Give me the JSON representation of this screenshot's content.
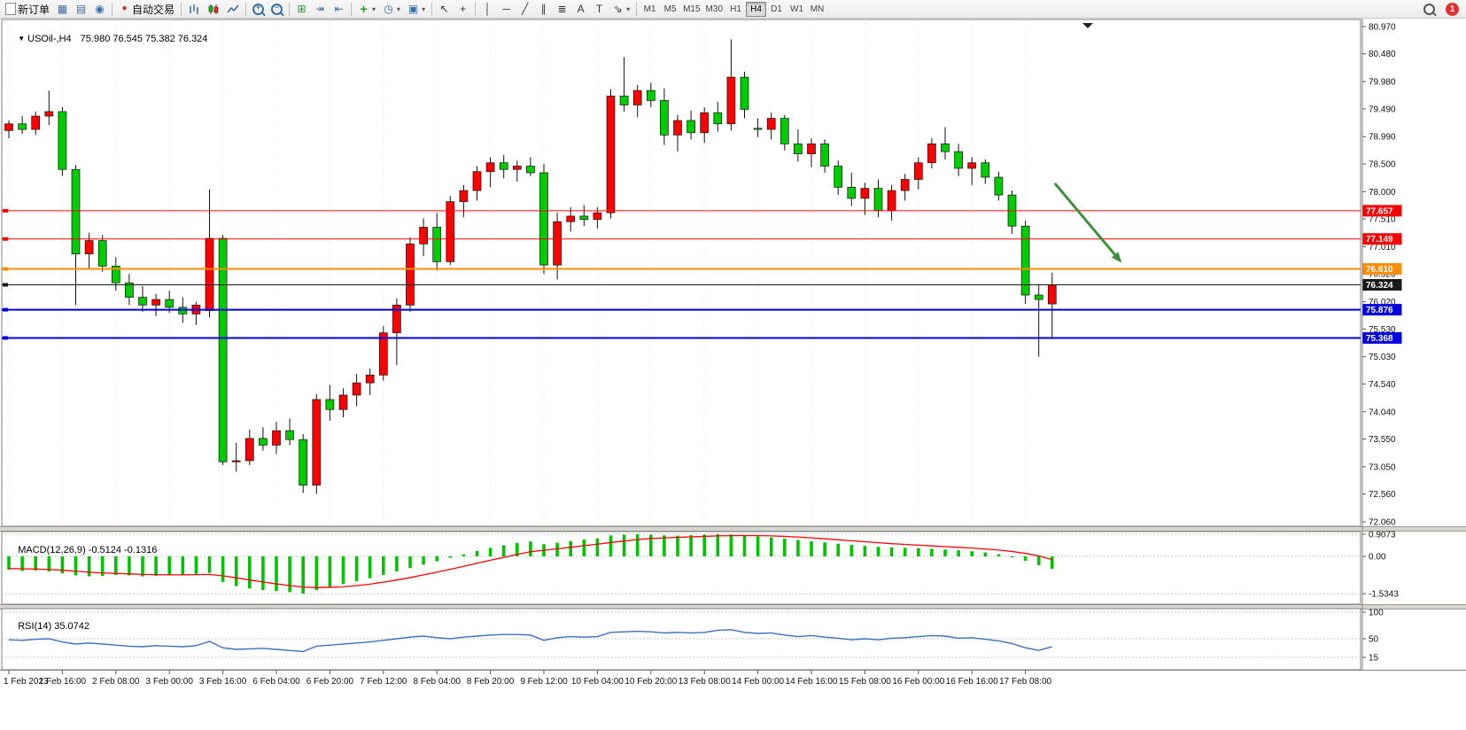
{
  "toolbar": {
    "new_order_label": "新订单",
    "autotrading_label": "自动交易",
    "notification_count": "1",
    "icons": {
      "market_watch": "▦",
      "data_window": "▤",
      "alerts": "◉",
      "zoom_in": "+",
      "zoom_out": "−",
      "tile": "⊞",
      "auto_scroll": "↠",
      "chart_shift": "⇤",
      "indicators_plus": "+",
      "periods": "◷",
      "templates": "▣",
      "caret": "▾",
      "cursor": "↖",
      "crosshair": "+",
      "vertical_line": "│",
      "horizontal_line": "─",
      "trendline": "╱",
      "channel": "∥",
      "fibonacci": "≣",
      "text_tool": "A",
      "label_tool": "T",
      "arrows_tool": "⇘",
      "autotrading_dot": "●"
    },
    "timeframes": [
      {
        "label": "M1",
        "active": false
      },
      {
        "label": "M5",
        "active": false
      },
      {
        "label": "M15",
        "active": false
      },
      {
        "label": "M30",
        "active": false
      },
      {
        "label": "H1",
        "active": false
      },
      {
        "label": "H4",
        "active": true
      },
      {
        "label": "D1",
        "active": false
      },
      {
        "label": "W1",
        "active": false
      },
      {
        "label": "MN",
        "active": false
      }
    ]
  },
  "window": {
    "marker": "▼",
    "title": "USOil-,H4",
    "ohlc": "75.980 76.545 75.382 76.324"
  },
  "indicators": {
    "macd": {
      "name": "MACD(12,26,9)",
      "values": "-0.5124 -0.1316"
    },
    "rsi": {
      "name": "RSI(14)",
      "value": "35.0742"
    }
  },
  "chart_data": {
    "type": "candlestick",
    "symbol": "USOil-",
    "timeframe": "H4",
    "up_color": "#ff0000",
    "down_color": "#00cc00",
    "candles": [
      [
        79.1,
        79.28,
        78.96,
        79.22
      ],
      [
        79.22,
        79.36,
        79.04,
        79.12
      ],
      [
        79.12,
        79.44,
        79.02,
        79.36
      ],
      [
        79.36,
        79.82,
        79.2,
        79.44
      ],
      [
        79.44,
        79.52,
        78.28,
        78.4
      ],
      [
        78.4,
        78.48,
        75.96,
        76.88
      ],
      [
        76.88,
        77.26,
        76.62,
        77.12
      ],
      [
        77.12,
        77.22,
        76.56,
        76.66
      ],
      [
        76.66,
        76.82,
        76.22,
        76.36
      ],
      [
        76.36,
        76.52,
        75.96,
        76.1
      ],
      [
        76.1,
        76.3,
        75.84,
        75.96
      ],
      [
        75.96,
        76.16,
        75.76,
        76.06
      ],
      [
        76.06,
        76.22,
        75.82,
        75.92
      ],
      [
        75.92,
        76.1,
        75.64,
        75.8
      ],
      [
        75.8,
        76.02,
        75.6,
        75.96
      ],
      [
        75.86,
        78.04,
        75.74,
        77.16
      ],
      [
        77.16,
        77.22,
        73.08,
        73.14
      ],
      [
        73.14,
        73.48,
        72.96,
        73.16
      ],
      [
        73.16,
        73.72,
        73.08,
        73.56
      ],
      [
        73.56,
        73.76,
        73.34,
        73.44
      ],
      [
        73.44,
        73.86,
        73.28,
        73.7
      ],
      [
        73.7,
        73.92,
        73.44,
        73.54
      ],
      [
        73.54,
        73.64,
        72.58,
        72.72
      ],
      [
        72.72,
        74.36,
        72.56,
        74.26
      ],
      [
        74.26,
        74.52,
        73.88,
        74.08
      ],
      [
        74.08,
        74.46,
        73.94,
        74.34
      ],
      [
        74.34,
        74.72,
        74.14,
        74.56
      ],
      [
        74.56,
        74.82,
        74.34,
        74.7
      ],
      [
        74.7,
        75.58,
        74.6,
        75.46
      ],
      [
        75.46,
        76.08,
        74.88,
        75.96
      ],
      [
        75.96,
        77.18,
        75.84,
        77.06
      ],
      [
        77.06,
        77.52,
        76.84,
        77.36
      ],
      [
        77.36,
        77.62,
        76.58,
        76.74
      ],
      [
        76.74,
        77.92,
        76.68,
        77.82
      ],
      [
        77.82,
        78.12,
        77.54,
        78.02
      ],
      [
        78.02,
        78.46,
        77.84,
        78.36
      ],
      [
        78.36,
        78.62,
        78.08,
        78.52
      ],
      [
        78.52,
        78.66,
        78.24,
        78.4
      ],
      [
        78.4,
        78.56,
        78.18,
        78.46
      ],
      [
        78.46,
        78.62,
        78.28,
        78.34
      ],
      [
        78.34,
        78.5,
        76.52,
        76.68
      ],
      [
        76.68,
        77.62,
        76.42,
        77.46
      ],
      [
        77.46,
        77.72,
        77.28,
        77.56
      ],
      [
        77.56,
        77.76,
        77.38,
        77.5
      ],
      [
        77.5,
        77.72,
        77.34,
        77.62
      ],
      [
        77.62,
        79.84,
        77.52,
        79.72
      ],
      [
        79.72,
        80.42,
        79.44,
        79.56
      ],
      [
        79.56,
        79.92,
        79.34,
        79.82
      ],
      [
        79.82,
        79.96,
        79.52,
        79.64
      ],
      [
        79.64,
        79.86,
        78.84,
        79.02
      ],
      [
        79.02,
        79.38,
        78.72,
        79.28
      ],
      [
        79.28,
        79.46,
        78.94,
        79.06
      ],
      [
        79.06,
        79.52,
        78.88,
        79.42
      ],
      [
        79.42,
        79.62,
        79.08,
        79.22
      ],
      [
        79.22,
        80.74,
        79.1,
        80.06
      ],
      [
        80.06,
        80.16,
        79.32,
        79.48
      ],
      [
        79.14,
        79.32,
        78.98,
        79.12
      ],
      [
        79.12,
        79.42,
        78.94,
        79.32
      ],
      [
        79.32,
        79.38,
        78.74,
        78.86
      ],
      [
        78.86,
        79.12,
        78.54,
        78.68
      ],
      [
        78.68,
        78.96,
        78.44,
        78.86
      ],
      [
        78.86,
        78.94,
        78.34,
        78.46
      ],
      [
        78.46,
        78.56,
        77.94,
        78.08
      ],
      [
        78.08,
        78.34,
        77.74,
        77.88
      ],
      [
        77.88,
        78.16,
        77.58,
        78.06
      ],
      [
        78.06,
        78.22,
        77.54,
        77.66
      ],
      [
        77.66,
        78.12,
        77.48,
        78.02
      ],
      [
        78.02,
        78.32,
        77.84,
        78.22
      ],
      [
        78.22,
        78.62,
        78.04,
        78.52
      ],
      [
        78.52,
        78.96,
        78.42,
        78.86
      ],
      [
        78.86,
        79.16,
        78.58,
        78.72
      ],
      [
        78.72,
        78.86,
        78.28,
        78.42
      ],
      [
        78.42,
        78.62,
        78.12,
        78.52
      ],
      [
        78.52,
        78.58,
        78.14,
        78.26
      ],
      [
        78.26,
        78.36,
        77.84,
        77.94
      ],
      [
        77.94,
        78.02,
        77.24,
        77.38
      ],
      [
        77.38,
        77.48,
        75.98,
        76.14
      ],
      [
        76.14,
        76.32,
        75.03,
        76.06
      ],
      [
        75.98,
        76.545,
        75.382,
        76.324
      ]
    ],
    "time_labels": [
      {
        "index": 0,
        "label": "1 Feb 2023"
      },
      {
        "index": 4,
        "label": "1 Feb 16:00"
      },
      {
        "index": 8,
        "label": "2 Feb 08:00"
      },
      {
        "index": 12,
        "label": "3 Feb 00:00"
      },
      {
        "index": 16,
        "label": "3 Feb 16:00"
      },
      {
        "index": 20,
        "label": "6 Feb 04:00"
      },
      {
        "index": 24,
        "label": "6 Feb 20:00"
      },
      {
        "index": 28,
        "label": "7 Feb 12:00"
      },
      {
        "index": 32,
        "label": "8 Feb 04:00"
      },
      {
        "index": 36,
        "label": "8 Feb 20:00"
      },
      {
        "index": 40,
        "label": "9 Feb 12:00"
      },
      {
        "index": 44,
        "label": "10 Feb 04:00"
      },
      {
        "index": 48,
        "label": "10 Feb 20:00"
      },
      {
        "index": 52,
        "label": "13 Feb 08:00"
      },
      {
        "index": 56,
        "label": "14 Feb 00:00"
      },
      {
        "index": 60,
        "label": "14 Feb 16:00"
      },
      {
        "index": 64,
        "label": "15 Feb 08:00"
      },
      {
        "index": 68,
        "label": "16 Feb 00:00"
      },
      {
        "index": 72,
        "label": "16 Feb 16:00"
      },
      {
        "index": 76,
        "label": "17 Feb 08:00"
      }
    ],
    "price_axis_ticks": [
      "80.970",
      "80.480",
      "79.980",
      "79.490",
      "78.990",
      "78.500",
      "78.000",
      "77.510",
      "77.010",
      "76.520",
      "76.020",
      "75.530",
      "75.030",
      "74.540",
      "74.040",
      "73.550",
      "73.050",
      "72.560",
      "72.060"
    ],
    "price_lines": [
      {
        "price": 77.657,
        "label": "77.657",
        "color": "#ff0000",
        "width": 1
      },
      {
        "price": 77.149,
        "label": "77.149",
        "color": "#ff0000",
        "width": 1
      },
      {
        "price": 76.61,
        "label": "76.610",
        "color": "#ff8c00",
        "width": 2
      },
      {
        "price": 76.324,
        "label": "76.324",
        "color": "#1a1a1a",
        "width": 1,
        "role": "current-price"
      },
      {
        "price": 75.876,
        "label": "75.876",
        "color": "#0000e0",
        "width": 2
      },
      {
        "price": 75.368,
        "label": "75.368",
        "color": "#0000e0",
        "width": 2
      }
    ],
    "arrow": {
      "from_bar": 78.2,
      "from_price": 78.15,
      "to_bar": 83.2,
      "to_price": 76.72,
      "color": "#3d8f3d"
    },
    "macd": {
      "histogram": [
        -0.55,
        -0.6,
        -0.58,
        -0.62,
        -0.7,
        -0.78,
        -0.82,
        -0.8,
        -0.76,
        -0.78,
        -0.82,
        -0.8,
        -0.78,
        -0.75,
        -0.72,
        -0.68,
        -1.05,
        -1.22,
        -1.32,
        -1.38,
        -1.42,
        -1.47,
        -1.5343,
        -1.38,
        -1.26,
        -1.14,
        -1.02,
        -0.9,
        -0.76,
        -0.62,
        -0.48,
        -0.34,
        -0.2,
        -0.06,
        0.08,
        0.22,
        0.35,
        0.46,
        0.55,
        0.61,
        0.5,
        0.56,
        0.63,
        0.69,
        0.74,
        0.86,
        0.89,
        0.905,
        0.89,
        0.86,
        0.85,
        0.87,
        0.89,
        0.9073,
        0.9,
        0.87,
        0.82,
        0.78,
        0.73,
        0.67,
        0.62,
        0.57,
        0.52,
        0.47,
        0.43,
        0.39,
        0.37,
        0.35,
        0.33,
        0.31,
        0.28,
        0.25,
        0.21,
        0.16,
        0.09,
        -0.04,
        -0.18,
        -0.36,
        -0.5124
      ],
      "signal": [
        -0.5,
        -0.51,
        -0.52,
        -0.54,
        -0.57,
        -0.61,
        -0.65,
        -0.68,
        -0.7,
        -0.72,
        -0.74,
        -0.75,
        -0.76,
        -0.76,
        -0.75,
        -0.74,
        -0.8,
        -0.88,
        -0.97,
        -1.05,
        -1.13,
        -1.2,
        -1.26,
        -1.28,
        -1.27,
        -1.25,
        -1.2,
        -1.14,
        -1.06,
        -0.97,
        -0.87,
        -0.76,
        -0.65,
        -0.53,
        -0.41,
        -0.28,
        -0.16,
        -0.04,
        0.08,
        0.19,
        0.25,
        0.31,
        0.37,
        0.44,
        0.5,
        0.57,
        0.63,
        0.69,
        0.73,
        0.76,
        0.78,
        0.8,
        0.82,
        0.84,
        0.85,
        0.855,
        0.85,
        0.84,
        0.82,
        0.79,
        0.76,
        0.72,
        0.68,
        0.64,
        0.6,
        0.56,
        0.52,
        0.49,
        0.46,
        0.43,
        0.4,
        0.37,
        0.34,
        0.3,
        0.26,
        0.2,
        0.12,
        0.02,
        -0.1316
      ],
      "axis_ticks": [
        {
          "label": "0.9073",
          "value": 0.9073
        },
        {
          "label": "0.00",
          "value": 0
        },
        {
          "label": "-1.5343",
          "value": -1.5343
        }
      ]
    },
    "rsi": {
      "values": [
        48,
        47,
        49,
        50,
        44,
        40,
        42,
        40,
        38,
        36,
        35,
        37,
        36,
        35,
        37,
        45,
        33,
        30,
        31,
        32,
        30,
        28,
        26,
        36,
        38,
        40,
        42,
        44,
        47,
        50,
        53,
        55,
        52,
        50,
        53,
        55,
        57,
        58,
        58,
        57,
        47,
        52,
        54,
        53,
        54,
        62,
        63,
        64,
        63,
        61,
        62,
        61,
        62,
        66,
        67,
        62,
        60,
        61,
        57,
        54,
        56,
        53,
        51,
        48,
        50,
        48,
        51,
        52,
        54,
        56,
        55,
        51,
        52,
        49,
        46,
        41,
        33,
        28,
        35.07
      ],
      "axis_ticks": [
        {
          "label": "100",
          "value": 100
        },
        {
          "label": "50",
          "value": 50
        },
        {
          "label": "15",
          "value": 15
        }
      ]
    }
  }
}
